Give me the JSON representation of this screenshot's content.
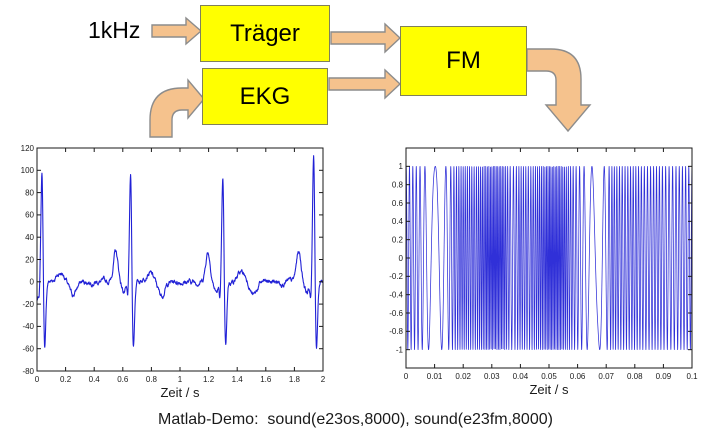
{
  "diagram": {
    "input_label": "1kHz",
    "blocks": [
      {
        "id": "traeger",
        "label": "Träger"
      },
      {
        "id": "ekg",
        "label": "EKG"
      },
      {
        "id": "fm",
        "label": "FM"
      }
    ],
    "box_fill": "#ffff00",
    "box_border": "#80805a",
    "arrow_fill": "#f5c28d",
    "arrow_border": "#8c8c8c",
    "arrows": [
      "input-to-traeger",
      "traeger-to-fm",
      "ekg-to-fm",
      "up-into-ekg",
      "fm-output-down"
    ]
  },
  "caption": {
    "text": "Matlab-Demo:  sound(e23os,8000), sound(e23fm,8000)"
  },
  "chart_data": [
    {
      "id": "ekg-signal",
      "type": "line",
      "title": "",
      "xlabel": "Zeit / s",
      "ylabel": "",
      "xlim": [
        0,
        2
      ],
      "ylim": [
        -80,
        120
      ],
      "xticks": [
        0,
        0.2,
        0.4,
        0.6,
        0.8,
        1,
        1.2,
        1.4,
        1.6,
        1.8,
        2
      ],
      "xtick_labels": [
        "0",
        "0.2",
        "0.4",
        "0.6",
        "0.8",
        "1",
        "1.2",
        "1.4",
        "1.6",
        "1.8",
        "2"
      ],
      "yticks": [
        -80,
        -60,
        -40,
        -20,
        0,
        20,
        40,
        60,
        80,
        100,
        120
      ],
      "ytick_labels": [
        "-80",
        "-60",
        "-40",
        "-20",
        "0",
        "20",
        "40",
        "60",
        "80",
        "100",
        "120"
      ],
      "grid": false,
      "box": true,
      "legend": null,
      "line_color": "#2121d6",
      "description": "EKG signal: 4 heartbeats in 2 s (~93 bpm). R peaks approx. 103, 100, 96, 118; S dips to approx. -60; small P/T bumps approx. +27 before each QRS; baseline near 0 with slight noise.",
      "signal": {
        "kind": "ekg",
        "beats": [
          {
            "t": 0.035,
            "R": 103
          },
          {
            "t": 0.655,
            "R": 100
          },
          {
            "t": 1.3,
            "R": 96
          },
          {
            "t": 1.935,
            "R": 118
          }
        ],
        "components": {
          "p_bump": {
            "dt": -0.105,
            "amp": 27,
            "sigma": 0.016
          },
          "pre_dip": {
            "dt": -0.045,
            "amp": -9,
            "sigma": 0.016
          },
          "q_dip": {
            "dt": -0.02,
            "amp": -12,
            "sigma": 0.005
          },
          "r_spike": {
            "dt": 0.0,
            "sigma": 0.0075
          },
          "s_dip": {
            "dt": 0.018,
            "amp": -62,
            "sigma": 0.0085
          },
          "t_bump": {
            "dt": 0.13,
            "amp": 8,
            "sigma": 0.03
          },
          "post_dip": {
            "dt": 0.215,
            "amp": -12,
            "sigma": 0.024
          }
        },
        "start_dip": {
          "t": -0.004,
          "amp": -10,
          "sigma": 0.012
        },
        "noise_amp": 1.0,
        "samples": 1100
      }
    },
    {
      "id": "fm-signal",
      "type": "line",
      "title": "",
      "xlabel": "Zeit / s",
      "ylabel": "",
      "xlim": [
        0,
        0.1
      ],
      "ylim": [
        -1.2,
        1.2
      ],
      "xticks": [
        0,
        0.01,
        0.02,
        0.03,
        0.04,
        0.05,
        0.06,
        0.07,
        0.08,
        0.09,
        0.1
      ],
      "xtick_labels": [
        "0",
        "0.01",
        "0.02",
        "0.03",
        "0.04",
        "0.05",
        "0.06",
        "0.07",
        "0.08",
        "0.09",
        "0.1"
      ],
      "yticks": [
        -1,
        -0.8,
        -0.6,
        -0.4,
        -0.2,
        0,
        0.2,
        0.4,
        0.6,
        0.8,
        1
      ],
      "ytick_labels": [
        "-1",
        "-0.8",
        "-0.6",
        "-0.4",
        "-0.2",
        "0",
        "0.2",
        "0.4",
        "0.6",
        "0.8",
        "1"
      ],
      "grid": false,
      "box": true,
      "legend": null,
      "line_color": "#3030d8",
      "description": "FM signal: 1 kHz carrier frequency-modulated by the EKG, amplitude ±1. Slow oscillation near t=0.01 s and t=0.067 s, very dense (high frequency) bursts around t=0.03 s and t=0.05 s.",
      "signal": {
        "kind": "fm",
        "amplitude": 1,
        "phase0_deg": 64,
        "freq_points": [
          [
            0,
            900
          ],
          [
            0.004,
            800
          ],
          [
            0.008,
            300
          ],
          [
            0.01,
            130
          ],
          [
            0.014,
            400
          ],
          [
            0.017,
            1100
          ],
          [
            0.02,
            1400
          ],
          [
            0.024,
            1200
          ],
          [
            0.028,
            1800
          ],
          [
            0.031,
            2000
          ],
          [
            0.034,
            1800
          ],
          [
            0.037,
            800
          ],
          [
            0.04,
            1300
          ],
          [
            0.043,
            1100
          ],
          [
            0.047,
            1500
          ],
          [
            0.05,
            2000
          ],
          [
            0.054,
            1900
          ],
          [
            0.058,
            1100
          ],
          [
            0.061,
            700
          ],
          [
            0.064,
            300
          ],
          [
            0.067,
            130
          ],
          [
            0.07,
            500
          ],
          [
            0.072,
            1200
          ],
          [
            0.076,
            1000
          ],
          [
            0.08,
            1100
          ],
          [
            0.084,
            900
          ],
          [
            0.088,
            1000
          ],
          [
            0.092,
            800
          ],
          [
            0.096,
            900
          ],
          [
            0.1,
            900
          ]
        ],
        "samples": 4200
      }
    }
  ]
}
